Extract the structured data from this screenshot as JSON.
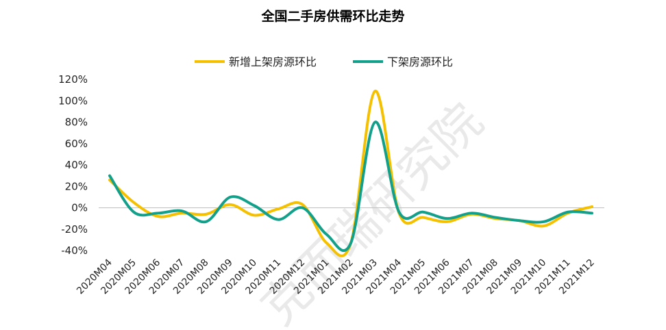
{
  "chart_data": {
    "type": "line",
    "title": "全国二手房供需环比走势",
    "categories": [
      "2020M04",
      "2020M05",
      "2020M06",
      "2020M07",
      "2020M08",
      "2020M09",
      "2020M10",
      "2020M11",
      "2020M12",
      "2021M01",
      "2021M02",
      "2021M03",
      "2021M04",
      "2021M05",
      "2021M06",
      "2021M07",
      "2021M08",
      "2021M09",
      "2021M10",
      "2021M11",
      "2021M12"
    ],
    "series": [
      {
        "name": "新增上架房源环比",
        "color": "#F5C000",
        "values": [
          26,
          5,
          -8,
          -5,
          -6,
          3,
          -7,
          -1,
          3,
          -33,
          -33,
          109,
          -5,
          -9,
          -13,
          -6,
          -10,
          -12,
          -17,
          -5,
          1
        ]
      },
      {
        "name": "下架房源环比",
        "color": "#13A08A",
        "values": [
          30,
          -4,
          -5,
          -3,
          -13,
          10,
          2,
          -11,
          0,
          -25,
          -33,
          80,
          -4,
          -4,
          -10,
          -5,
          -9,
          -12,
          -13,
          -4,
          -5
        ]
      }
    ],
    "ylim": [
      -40,
      120
    ],
    "yticks": [
      -40,
      -20,
      0,
      20,
      40,
      60,
      80,
      100,
      120
    ],
    "ytick_labels": [
      "-40%",
      "-20%",
      "0%",
      "20%",
      "40%",
      "60%",
      "80%",
      "100%",
      "120%"
    ],
    "legend_position": "top",
    "grid": false
  },
  "watermark": "克而瑞研究院"
}
